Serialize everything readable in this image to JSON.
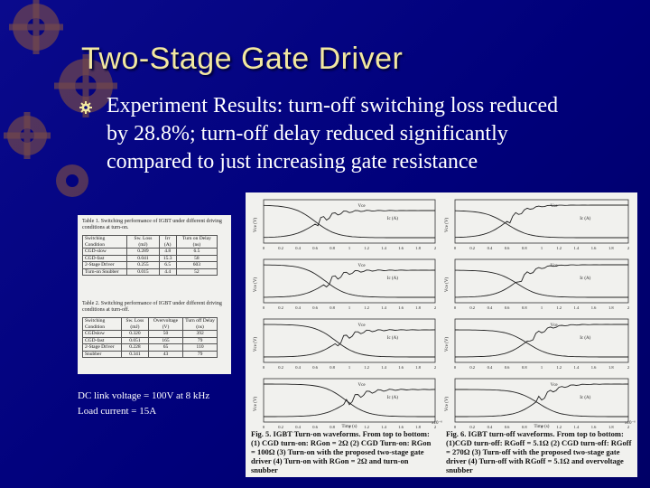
{
  "slide": {
    "title": "Two-Stage Gate Driver",
    "bullet_text": "Experiment Results: turn-off switching loss reduced by 28.8%; turn-off delay reduced significantly compared to just increasing gate resistance",
    "conditions": [
      "DC link voltage = 100V at 8 kHz",
      "Load current = 15A"
    ]
  },
  "table1": {
    "caption": "Table 1.  Switching performance of IGBT under different driving conditions at turn-on.",
    "headers": [
      "Switching Condition",
      "Sw. Loss (mJ)",
      "Irr (A)",
      "Turn on Delay (ns)"
    ],
    "rows": [
      [
        "CGD-slow",
        "0.289",
        "4.8",
        "6.5"
      ],
      [
        "CGD-fast",
        "0.041",
        "15.3",
        "58"
      ],
      [
        "2-Stage Driver",
        "0.255",
        "6.5",
        "603"
      ],
      [
        "Turn-on Snubber",
        "0.015",
        "4.4",
        "52"
      ]
    ]
  },
  "table2": {
    "caption": "Table 2.  Switching performance of IGBT under different driving conditions at turn-off.",
    "headers": [
      "Switching Condition",
      "Sw. Loss (mJ)",
      "Overvoltage (V)",
      "Turn off Delay (ns)"
    ],
    "rows": [
      [
        "CGDslow",
        "0.320",
        "50",
        "392"
      ],
      [
        "CGD-fast",
        "0.051",
        "165",
        "79"
      ],
      [
        "2-Stage Driver",
        "0.228",
        "65",
        "110"
      ],
      [
        "Snubber",
        "0.341",
        "43",
        "79"
      ]
    ]
  },
  "figures": {
    "fig5_caption": "Fig. 5.  IGBT Turn-on waveforms. From top to bottom: (1) CGD turn-on: RGon = 2Ω (2) CGD Turn-on: RGon = 100Ω (3) Turn-on with the proposed two-stage gate driver (4) Turn-on with RGon = 2Ω and turn-on snubber",
    "fig6_caption": "Fig. 6.  IGBT turn-off waveforms. From top to bottom: (1)CGD turn-off: RGoff = 5.1Ω (2) CGD turn-off: RGoff = 270Ω (3) Turn-off with the proposed two-stage gate driver (4) Turn-off with RGoff = 5.1Ω and overvoltage snubber",
    "left_xticks": [
      "0",
      "0.2",
      "0.4",
      "0.6",
      "0.8",
      "1",
      "1.2",
      "1.4",
      "1.6",
      "1.8",
      "2"
    ],
    "right_xticks": [
      "0",
      "0.2",
      "0.4",
      "0.6",
      "0.8",
      "1",
      "1.2",
      "1.4",
      "1.6",
      "1.8",
      "2"
    ],
    "x_axis_label": "Time (s)",
    "x_exponent": "x10⁻⁶",
    "left_label_vce": "Vce",
    "left_label_ic": "Ic (A)",
    "right_label_vce": "Vce",
    "right_label_ic": "Ic (A)",
    "y_label": "Vce (V)"
  },
  "colors": {
    "background": "#00007a",
    "title": "#f2e8a0",
    "text": "#ffffff",
    "panel": "#f1f1ee",
    "trace": "#222222"
  },
  "icons": {
    "bullet": "gear-bullet-icon",
    "decor": "gear-decoration-icon"
  }
}
